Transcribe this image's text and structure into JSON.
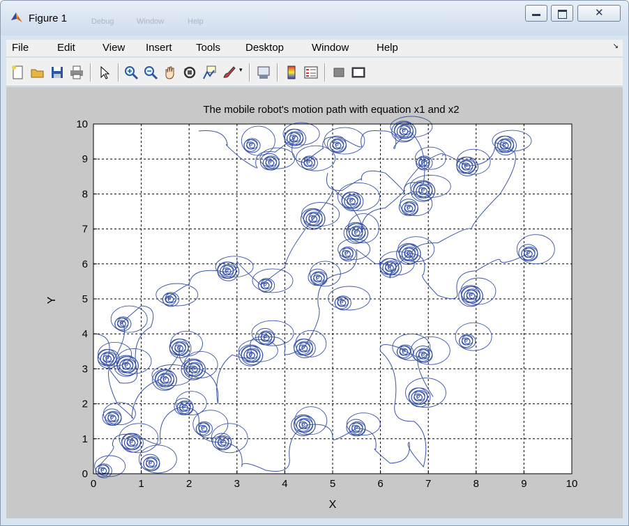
{
  "window": {
    "title": "Figure 1",
    "faded_menu": [
      "Debug",
      "Window",
      "Help"
    ],
    "controls": [
      "minimize-button",
      "maximize-button",
      "close-button"
    ]
  },
  "menubar": {
    "items": [
      "File",
      "Edit",
      "View",
      "Insert",
      "Tools",
      "Desktop",
      "Window",
      "Help"
    ]
  },
  "toolbar": {
    "icons": [
      "new-figure-icon",
      "open-file-icon",
      "save-icon",
      "print-icon",
      "edit-plot-icon",
      "zoom-in-icon",
      "zoom-out-icon",
      "pan-icon",
      "rotate-3d-icon",
      "data-cursor-icon",
      "brush-icon",
      "link-plot-icon",
      "colorbar-icon",
      "legend-icon",
      "hide-plot-tools-icon",
      "show-plot-tools-icon"
    ]
  },
  "chart_data": {
    "type": "line",
    "title": "The  mobile  robot's  motion  path  with  equation  x1  and  x2",
    "xlabel": "X",
    "ylabel": "Y",
    "xlim": [
      0,
      10
    ],
    "ylim": [
      0,
      10
    ],
    "xticks": [
      "0",
      "1",
      "2",
      "3",
      "4",
      "5",
      "6",
      "7",
      "8",
      "9",
      "10"
    ],
    "yticks": [
      "0",
      "1",
      "2",
      "3",
      "4",
      "5",
      "6",
      "7",
      "8",
      "9",
      "10"
    ],
    "grid": true,
    "line_color": "#3a55a8",
    "series": [
      {
        "x": [
          0.05,
          0.3,
          0.55,
          0.9,
          1.2,
          1.0,
          0.6,
          0.4,
          0.5,
          0.8,
          1.4,
          1.8,
          2.2,
          2.6,
          2.9,
          3.3,
          3.6,
          4.0,
          4.4,
          4.7,
          5.1,
          5.5,
          5.9,
          6.2,
          6.6,
          6.9,
          7.2,
          7.6,
          8.0,
          8.5,
          9.1
        ],
        "y": [
          4.0,
          3.3,
          2.6,
          3.0,
          4.2,
          4.8,
          4.3,
          3.2,
          2.0,
          1.6,
          2.7,
          3.6,
          3.0,
          2.0,
          3.4,
          3.5,
          3.9,
          3.5,
          3.6,
          4.8,
          5.7,
          6.4,
          6.0,
          5.6,
          6.3,
          5.7,
          5.1,
          5.2,
          5.8,
          6.1,
          6.3
        ]
      },
      {
        "x": [
          0.1,
          0.4,
          0.9,
          1.4,
          1.8,
          2.2,
          2.7,
          3.1,
          3.6,
          4.1,
          4.5,
          5.0,
          5.5,
          5.9,
          6.2,
          6.6,
          6.9,
          6.7,
          6.3,
          6.0,
          6.4,
          6.8,
          7.1
        ],
        "y": [
          0.2,
          0.8,
          1.1,
          0.9,
          1.9,
          1.4,
          0.9,
          0.2,
          0.1,
          0.4,
          1.4,
          1.0,
          1.3,
          0.7,
          0.3,
          0.9,
          0.2,
          1.5,
          2.0,
          3.5,
          3.6,
          3.4,
          2.2
        ]
      },
      {
        "x": [
          1.5,
          2.0,
          2.6,
          3.0,
          3.5,
          4.0,
          4.6,
          5.0,
          5.3,
          5.6,
          6.1,
          6.5,
          6.9,
          7.3,
          7.8,
          8.4,
          8.8,
          8.5,
          7.9,
          7.2,
          6.6
        ],
        "y": [
          5.0,
          5.4,
          5.8,
          6.1,
          5.4,
          5.9,
          7.3,
          8.2,
          7.8,
          6.9,
          7.6,
          8.1,
          8.9,
          9.1,
          8.8,
          9.4,
          9.2,
          8.0,
          7.0,
          6.6,
          6.1
        ]
      },
      {
        "x": [
          2.2,
          2.8,
          3.1,
          3.4,
          3.8,
          4.2,
          4.4,
          4.8,
          5.2,
          5.6,
          6.0,
          6.3,
          6.6,
          6.9,
          6.5,
          6.1,
          5.6,
          5.2,
          4.9
        ],
        "y": [
          9.8,
          9.4,
          9.0,
          8.8,
          9.2,
          9.6,
          8.9,
          9.3,
          9.6,
          9.4,
          9.8,
          9.3,
          9.8,
          8.3,
          8.0,
          8.6,
          8.4,
          8.1,
          8.6
        ]
      }
    ],
    "cluster_centers": [
      [
        0.2,
        0.1
      ],
      [
        0.4,
        1.6
      ],
      [
        0.3,
        3.3
      ],
      [
        0.7,
        3.1
      ],
      [
        0.6,
        4.3
      ],
      [
        1.2,
        0.3
      ],
      [
        0.8,
        0.9
      ],
      [
        1.5,
        2.7
      ],
      [
        1.6,
        5.0
      ],
      [
        1.9,
        1.9
      ],
      [
        1.8,
        3.6
      ],
      [
        2.1,
        3.0
      ],
      [
        2.3,
        1.3
      ],
      [
        2.7,
        0.9
      ],
      [
        2.8,
        5.8
      ],
      [
        3.3,
        3.4
      ],
      [
        3.6,
        5.4
      ],
      [
        3.6,
        3.9
      ],
      [
        4.4,
        3.6
      ],
      [
        4.4,
        1.4
      ],
      [
        3.3,
        9.4
      ],
      [
        3.7,
        8.9
      ],
      [
        4.2,
        9.6
      ],
      [
        4.6,
        7.3
      ],
      [
        4.5,
        8.9
      ],
      [
        5.1,
        9.4
      ],
      [
        5.4,
        7.8
      ],
      [
        5.5,
        6.9
      ],
      [
        5.3,
        6.3
      ],
      [
        5.5,
        1.3
      ],
      [
        6.2,
        5.9
      ],
      [
        6.6,
        6.3
      ],
      [
        6.5,
        3.5
      ],
      [
        6.9,
        3.4
      ],
      [
        6.8,
        2.2
      ],
      [
        6.5,
        9.8
      ],
      [
        6.9,
        8.9
      ],
      [
        6.6,
        7.6
      ],
      [
        7.8,
        8.8
      ],
      [
        7.9,
        5.1
      ],
      [
        7.8,
        3.8
      ],
      [
        9.1,
        6.3
      ],
      [
        8.6,
        9.4
      ],
      [
        6.9,
        8.1
      ],
      [
        5.2,
        4.9
      ],
      [
        4.7,
        5.6
      ]
    ]
  }
}
